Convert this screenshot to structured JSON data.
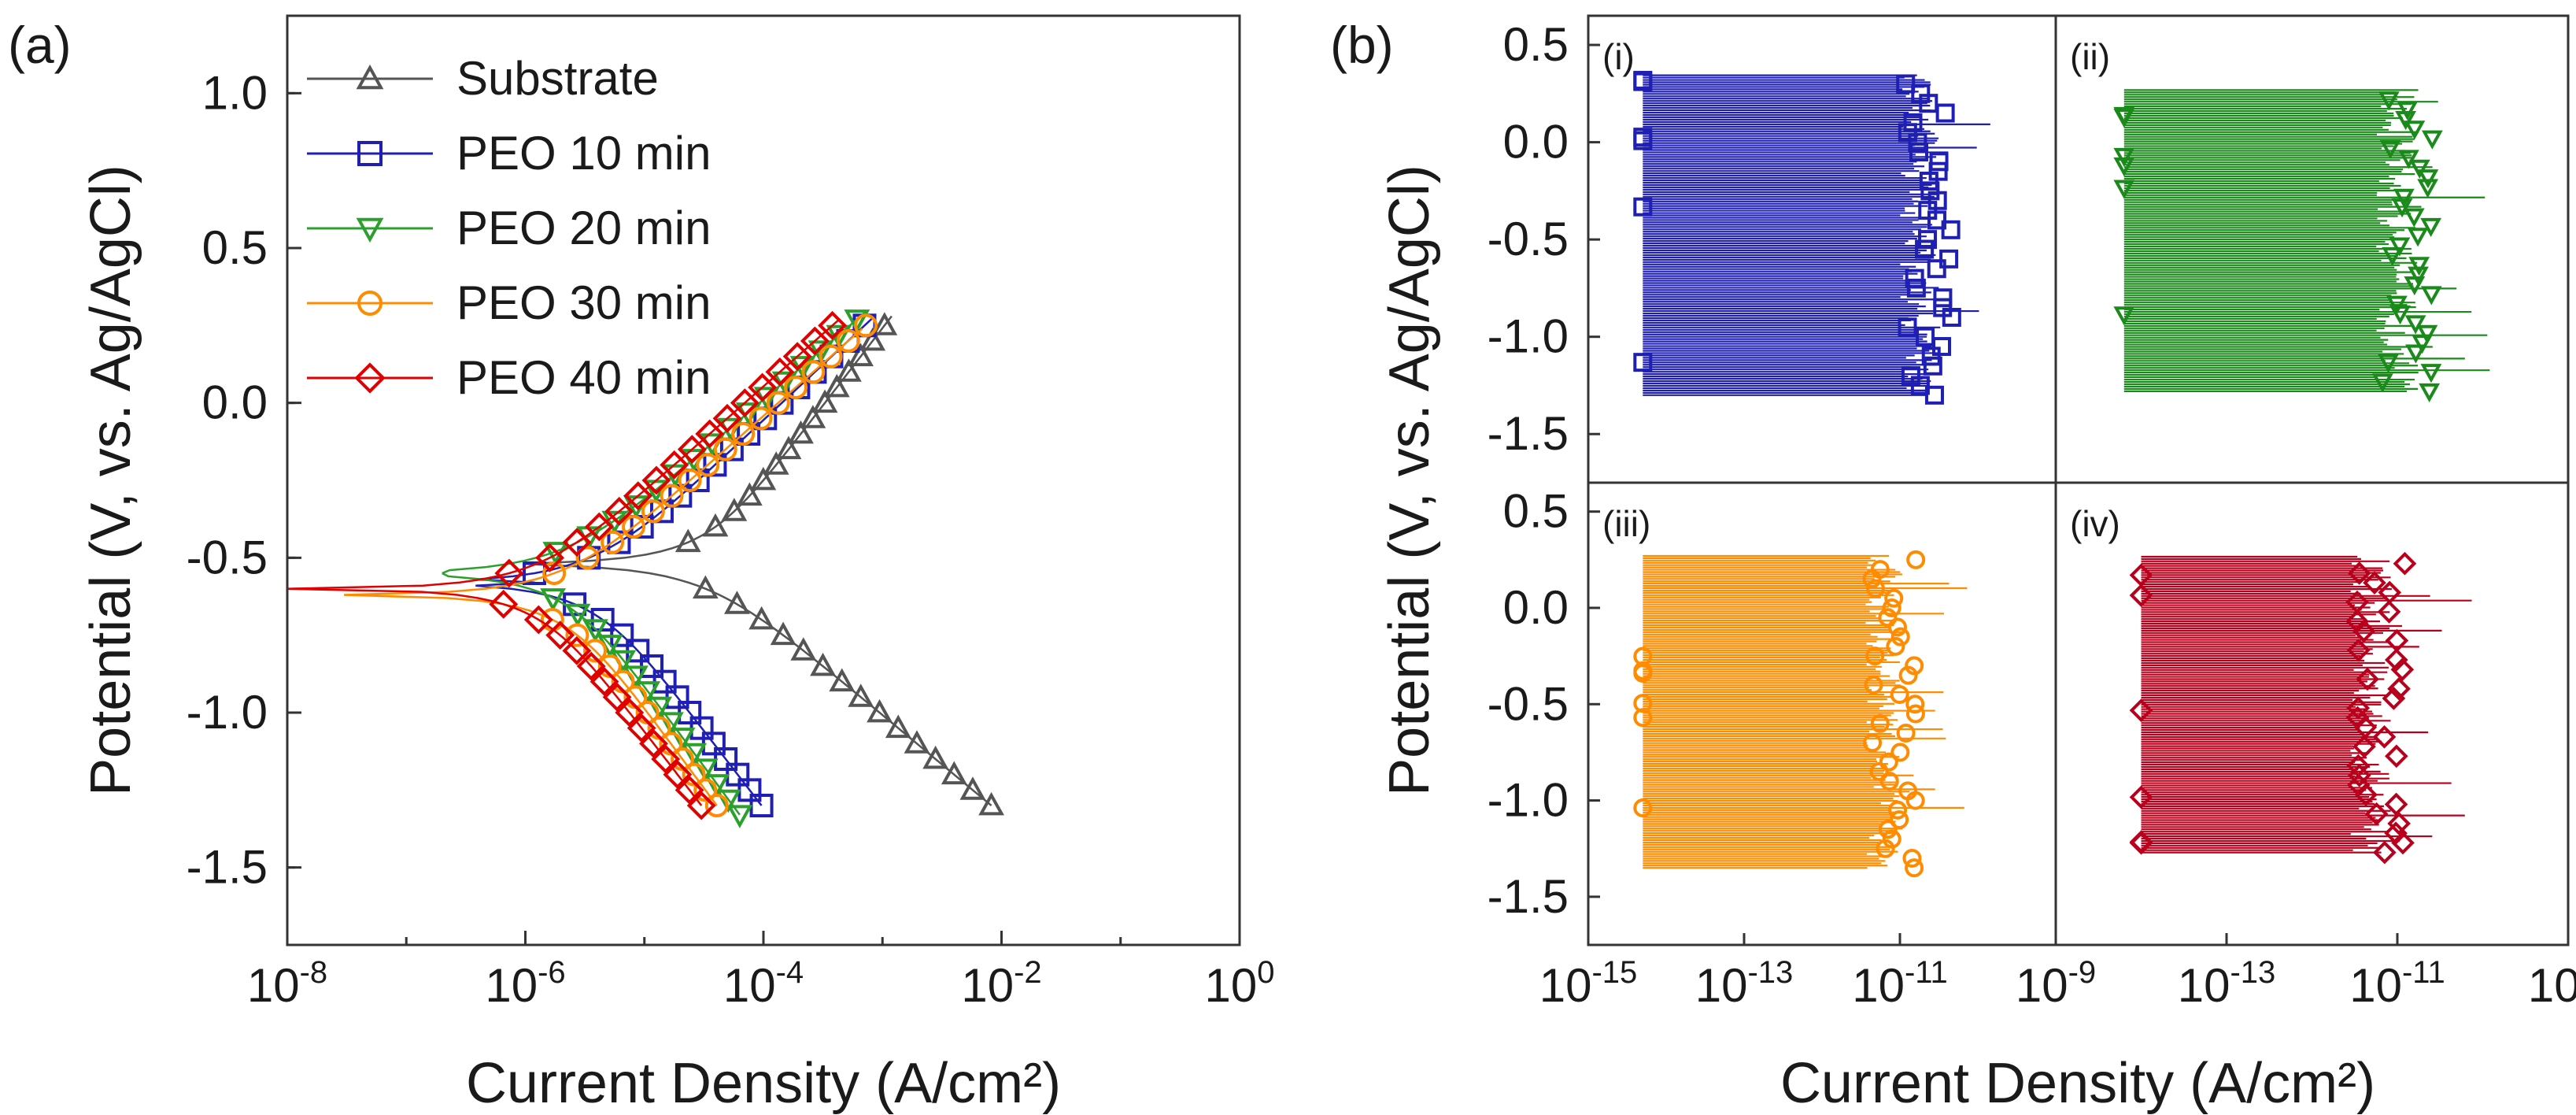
{
  "figure_labels": {
    "a": "(a)",
    "b": "(b)"
  },
  "chart_data": [
    {
      "type": "line",
      "panel": "(a)",
      "title": "",
      "xlabel": "Current Density (A/cm²)",
      "ylabel": "Potential (V, vs. Ag/AgCl)",
      "xscale": "log",
      "xlim": [
        1e-08,
        1
      ],
      "ylim": [
        -1.75,
        1.25
      ],
      "x_ticks": [
        {
          "value": 1e-08,
          "base": "10",
          "exp": "-8"
        },
        {
          "value": 1e-06,
          "base": "10",
          "exp": "-6"
        },
        {
          "value": 0.0001,
          "base": "10",
          "exp": "-4"
        },
        {
          "value": 0.01,
          "base": "10",
          "exp": "-2"
        },
        {
          "value": 1,
          "base": "10",
          "exp": "0"
        }
      ],
      "y_ticks": [
        {
          "value": 1.0,
          "label": "1.0"
        },
        {
          "value": 0.5,
          "label": "0.5"
        },
        {
          "value": 0.0,
          "label": "0.0"
        },
        {
          "value": -0.5,
          "label": "-0.5"
        },
        {
          "value": -1.0,
          "label": "-1.0"
        },
        {
          "value": -1.5,
          "label": "-1.5"
        }
      ],
      "legend_position": "top-left",
      "series": [
        {
          "name": "Substrate",
          "color": "#555555",
          "marker": "triangle-up",
          "ecorr": -0.52,
          "icorr": 3e-05,
          "ba": 0.5,
          "bc": 0.32,
          "emin": -1.3,
          "emax": 0.29,
          "istart": 1e-06
        },
        {
          "name": "PEO 10 min",
          "color": "#1f1fb4",
          "marker": "square",
          "ecorr": -0.58,
          "icorr": 3.5e-06,
          "ba": 0.36,
          "bc": 0.5,
          "emin": -1.3,
          "emax": 0.29,
          "istart": 1.2e-06
        },
        {
          "name": "PEO 20 min",
          "color": "#2ca02c",
          "marker": "triangle-down",
          "ecorr": -0.55,
          "icorr": 2e-06,
          "ba": 0.33,
          "bc": 0.52,
          "emin": -1.33,
          "emax": 0.3,
          "istart": 2e-07
        },
        {
          "name": "PEO 30 min",
          "color": "#ff8c00",
          "marker": "circle",
          "ecorr": -0.62,
          "icorr": 2e-06,
          "ba": 0.34,
          "bc": 0.52,
          "emin": -1.3,
          "emax": 0.25,
          "istart": 3e-08
        },
        {
          "name": "PEO 40 min",
          "color": "#e00000",
          "marker": "diamond",
          "ecorr": -0.6,
          "icorr": 1.2e-06,
          "ba": 0.34,
          "bc": 0.5,
          "emin": -1.3,
          "emax": 0.28,
          "istart": 1e-08
        }
      ]
    },
    {
      "type": "scatter",
      "panel": "(b)",
      "xlabel": "Current Density (A/cm²)",
      "ylabel": "Potential (V, vs. Ag/AgCl)",
      "xscale": "log",
      "xlim": [
        1e-15,
        1e-09
      ],
      "ylim": [
        -1.75,
        0.65
      ],
      "x_ticks": [
        {
          "value": 1e-15,
          "base": "10",
          "exp": "-15"
        },
        {
          "value": 1e-13,
          "base": "10",
          "exp": "-13"
        },
        {
          "value": 1e-11,
          "base": "10",
          "exp": "-11"
        },
        {
          "value": 1e-09,
          "base": "10",
          "exp": "-9"
        }
      ],
      "y_ticks": [
        {
          "value": 0.5,
          "label": "0.5"
        },
        {
          "value": 0.0,
          "label": "0.0"
        },
        {
          "value": -0.5,
          "label": "-0.5"
        },
        {
          "value": -1.0,
          "label": "-1.0"
        },
        {
          "value": -1.5,
          "label": "-1.5"
        }
      ],
      "subplots": [
        {
          "label": "(i)",
          "color": "#1f1fb4",
          "marker": "square",
          "emin": -1.3,
          "emax": 0.35,
          "base_exp": -10.75,
          "left_exp": -14.3,
          "pattern": "steady"
        },
        {
          "label": "(ii)",
          "color": "#1a8a1a",
          "marker": "triangle-down",
          "emin": -1.28,
          "emax": 0.27,
          "base_exp": -11.0,
          "left_exp": -14.2,
          "pattern": "wall"
        },
        {
          "label": "(iii)",
          "color": "#ff8c00",
          "marker": "circle",
          "emin": -1.35,
          "emax": 0.28,
          "base_exp": -11.2,
          "left_exp": -14.3,
          "pattern": "wall"
        },
        {
          "label": "(iv)",
          "color": "#b8001c",
          "marker": "diamond",
          "emin": -1.27,
          "emax": 0.27,
          "base_exp": -11.3,
          "left_exp": -14.0,
          "pattern": "wall"
        }
      ]
    }
  ]
}
